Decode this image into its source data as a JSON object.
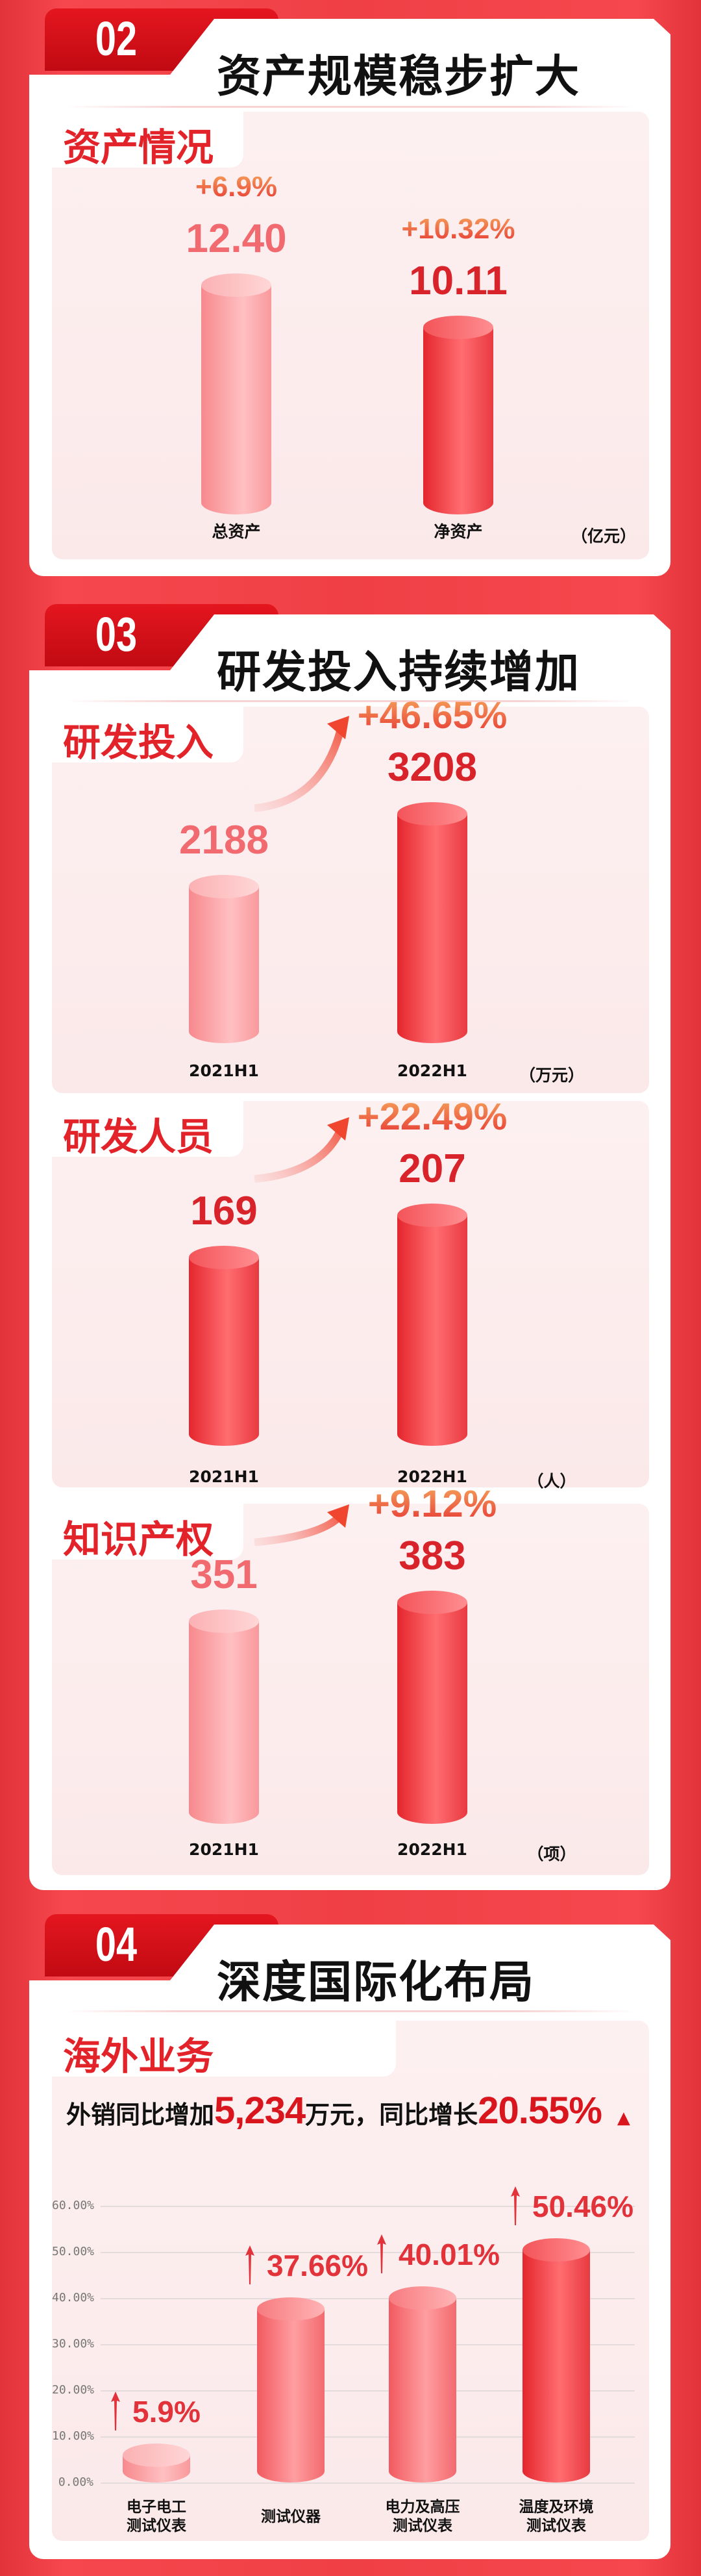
{
  "colors": {
    "accent": "#e3232a",
    "background": "#ef4046",
    "card": "#ffffff"
  },
  "sections": [
    {
      "number": "02",
      "title": "资产规模稳步扩大",
      "panels": [
        {
          "label": "资产情况",
          "unit": "（亿元）",
          "bars": [
            {
              "category": "总资产",
              "value": "12.40",
              "change": "+6.9%"
            },
            {
              "category": "净资产",
              "value": "10.11",
              "change": "+10.32%"
            }
          ]
        }
      ]
    },
    {
      "number": "03",
      "title": "研发投入持续增加",
      "panels": [
        {
          "label": "研发投入",
          "unit": "（万元）",
          "growth": "+46.65%",
          "growth_icon": "curved-arrow-up-icon",
          "bars": [
            {
              "category": "2021H1",
              "value": "2188"
            },
            {
              "category": "2022H1",
              "value": "3208"
            }
          ]
        },
        {
          "label": "研发人员",
          "unit": "（人）",
          "growth": "+22.49%",
          "growth_icon": "curved-arrow-up-icon",
          "bars": [
            {
              "category": "2021H1",
              "value": "169"
            },
            {
              "category": "2022H1",
              "value": "207"
            }
          ]
        },
        {
          "label": "知识产权",
          "unit": "（项）",
          "growth": "+9.12%",
          "growth_icon": "curved-arrow-up-icon",
          "bars": [
            {
              "category": "2021H1",
              "value": "351"
            },
            {
              "category": "2022H1",
              "value": "383"
            }
          ]
        }
      ]
    },
    {
      "number": "04",
      "title": "深度国际化布局",
      "panels": [
        {
          "label": "海外业务",
          "summary": {
            "prefix": "外销同比增加",
            "amount": "5,234",
            "middle": "万元，同比增长",
            "rate": "20.55%",
            "trend_icon": "triangle-up-icon"
          }
        }
      ]
    }
  ],
  "chart_data": {
    "type": "bar",
    "categories": [
      "电子电工\n测试仪表",
      "测试仪器",
      "电力及高压\n测试仪表",
      "温度及环境\n测试仪表"
    ],
    "values": [
      5.9,
      37.66,
      40.01,
      50.46
    ],
    "data_labels": [
      "5.9%",
      "37.66%",
      "40.01%",
      "50.46%"
    ],
    "yticks": [
      "0.00%",
      "10.00%",
      "20.00%",
      "30.00%",
      "40.00%",
      "50.00%",
      "60.00%"
    ],
    "ylim": [
      0,
      60
    ],
    "grid": true,
    "label_icon": "arrow-up-icon"
  }
}
